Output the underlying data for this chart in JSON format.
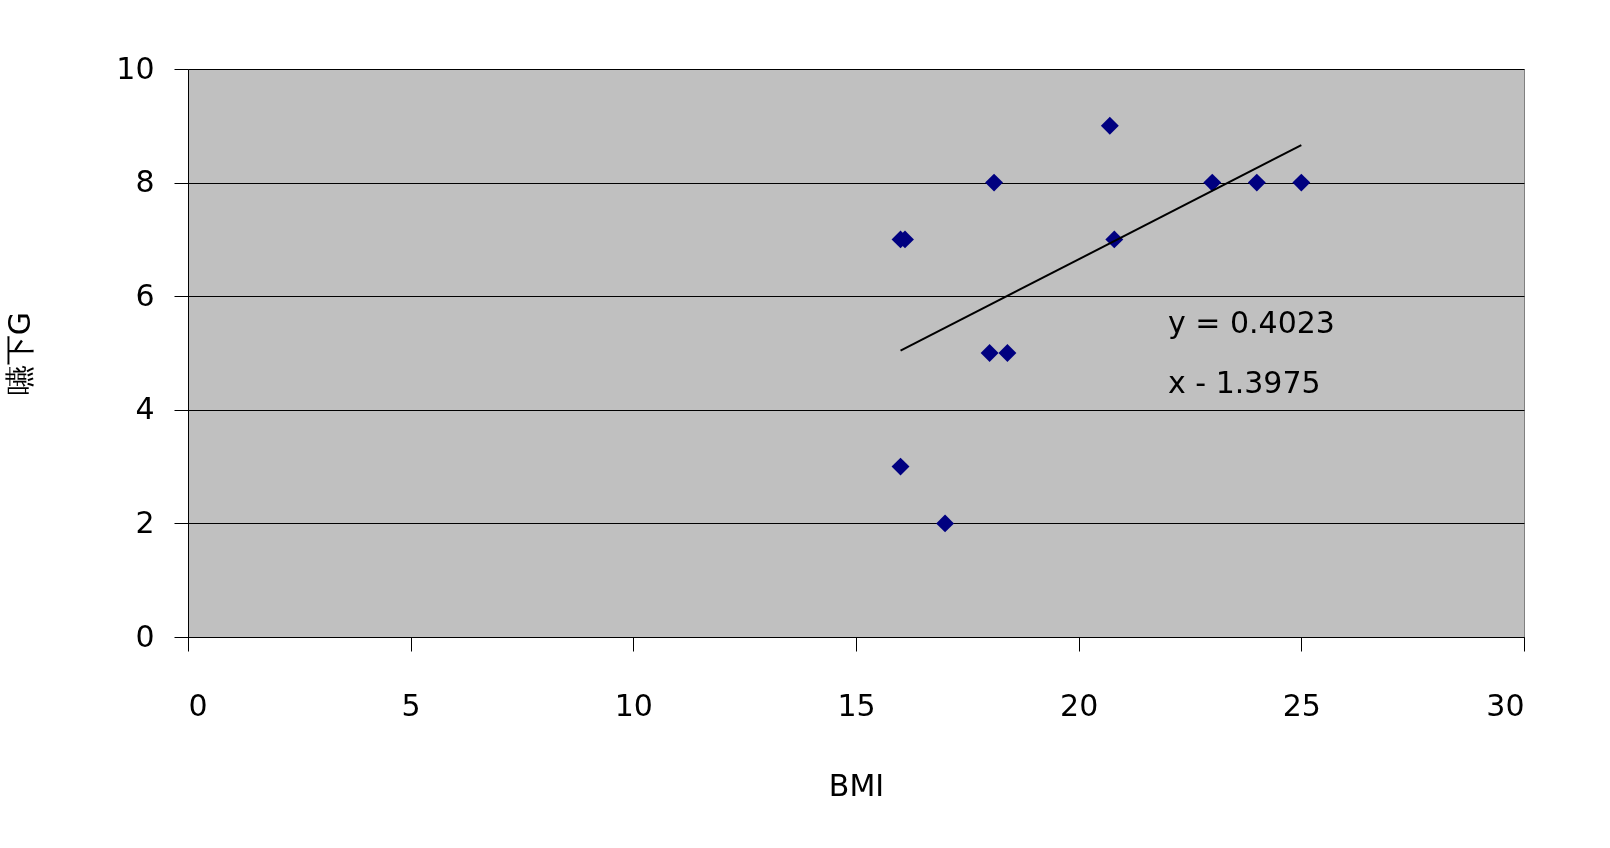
{
  "chart_data": {
    "type": "scatter",
    "xlabel": "BMI",
    "ylabel": "嚥下G",
    "series": [
      {
        "color": "#000080",
        "marker": "diamond",
        "x": [
          16.0,
          16.1,
          18.1,
          20.7,
          20.8,
          23.0,
          24.0,
          25.0,
          18.0,
          18.4,
          16.0,
          17.0
        ],
        "values": [
          7,
          7,
          8,
          9,
          7,
          8,
          8,
          8,
          5,
          5,
          3,
          2
        ]
      },
      {
        "type": "line",
        "color": "#000000",
        "x": [
          16.0,
          25.0
        ],
        "values": [
          5.04,
          8.66
        ]
      }
    ],
    "annotations": [
      "y = 0.4023",
      "x - 1.3975"
    ],
    "xlim": [
      0,
      30
    ],
    "xticks": [
      0,
      5,
      10,
      15,
      20,
      25,
      30
    ],
    "ylim": [
      0,
      10
    ],
    "yticks": [
      0,
      2,
      4,
      6,
      8,
      10
    ],
    "grid": "y"
  }
}
